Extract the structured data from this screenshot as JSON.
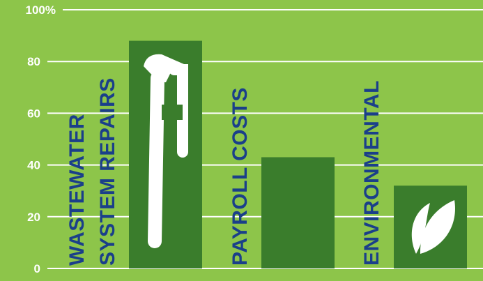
{
  "colors": {
    "background": "#8dc54a",
    "bar": "#3a7d2c",
    "grid": "#ffffff",
    "label": "#1a3f8a",
    "tick": "#ffffff",
    "icon": "#ffffff"
  },
  "icons": [
    "pipe-wrench-icon",
    "leaf-icon"
  ],
  "chart_data": {
    "type": "bar",
    "title": "",
    "xlabel": "",
    "ylabel": "",
    "ylim": [
      0,
      100
    ],
    "grid": true,
    "legend": "none",
    "ytick_labels": [
      "0",
      "20",
      "40",
      "60",
      "80",
      "100%"
    ],
    "categories": [
      [
        "WASTEWATER",
        "SYSTEM REPAIRS"
      ],
      [
        "PAYROLL COSTS"
      ],
      [
        "ENVIRONMENTAL"
      ]
    ],
    "values": [
      88,
      43,
      32
    ]
  }
}
